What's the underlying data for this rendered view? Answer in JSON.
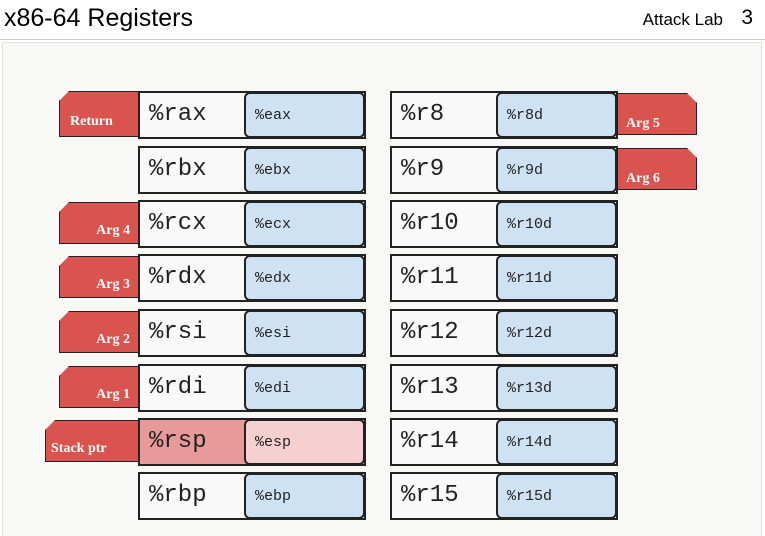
{
  "header": {
    "title": "x86-64 Registers",
    "right_label": "Attack Lab",
    "page_number": "3"
  },
  "colors": {
    "tag": "#d9534f",
    "sub_register": "#cfe2f3",
    "stack_register": "#e89a9a",
    "stack_sub_register": "#f6d0d0"
  },
  "left_column": [
    {
      "name": "%rax",
      "sub": "%eax",
      "tag": "Return"
    },
    {
      "name": "%rbx",
      "sub": "%ebx",
      "tag": ""
    },
    {
      "name": "%rcx",
      "sub": "%ecx",
      "tag": "Arg 4"
    },
    {
      "name": "%rdx",
      "sub": "%edx",
      "tag": "Arg 3"
    },
    {
      "name": "%rsi",
      "sub": "%esi",
      "tag": "Arg 2"
    },
    {
      "name": "%rdi",
      "sub": "%edi",
      "tag": "Arg 1"
    },
    {
      "name": "%rsp",
      "sub": "%esp",
      "tag": "Stack ptr"
    },
    {
      "name": "%rbp",
      "sub": "%ebp",
      "tag": ""
    }
  ],
  "right_column": [
    {
      "name": "%r8",
      "sub": "%r8d",
      "tag": "Arg 5"
    },
    {
      "name": "%r9",
      "sub": "%r9d",
      "tag": "Arg 6"
    },
    {
      "name": "%r10",
      "sub": "%r10d",
      "tag": ""
    },
    {
      "name": "%r11",
      "sub": "%r11d",
      "tag": ""
    },
    {
      "name": "%r12",
      "sub": "%r12d",
      "tag": ""
    },
    {
      "name": "%r13",
      "sub": "%r13d",
      "tag": ""
    },
    {
      "name": "%r14",
      "sub": "%r14d",
      "tag": ""
    },
    {
      "name": "%r15",
      "sub": "%r15d",
      "tag": ""
    }
  ]
}
